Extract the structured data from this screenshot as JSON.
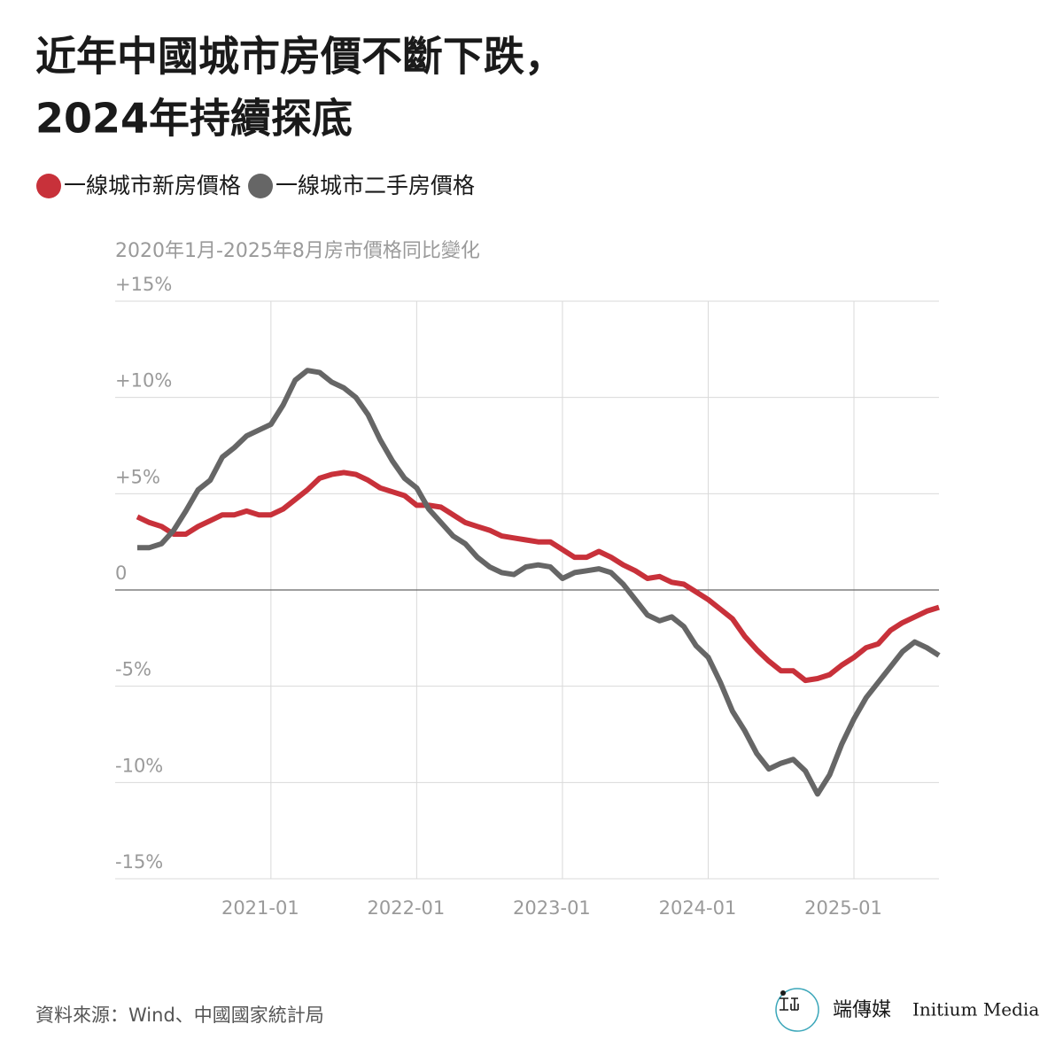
{
  "chart_data": {
    "type": "line",
    "title": [
      "近年中國城市房價不斷下跌，",
      "2024年持續探底"
    ],
    "subtitle": "2020年1月-2025年8月房市價格同比變化",
    "x": [
      "2020-02",
      "2020-03",
      "2020-04",
      "2020-05",
      "2020-06",
      "2020-07",
      "2020-08",
      "2020-09",
      "2020-10",
      "2020-11",
      "2020-12",
      "2021-01",
      "2021-02",
      "2021-03",
      "2021-04",
      "2021-05",
      "2021-06",
      "2021-07",
      "2021-08",
      "2021-09",
      "2021-10",
      "2021-11",
      "2021-12",
      "2022-01",
      "2022-02",
      "2022-03",
      "2022-04",
      "2022-05",
      "2022-06",
      "2022-07",
      "2022-08",
      "2022-09",
      "2022-10",
      "2022-11",
      "2022-12",
      "2023-01",
      "2023-02",
      "2023-03",
      "2023-04",
      "2023-05",
      "2023-06",
      "2023-07",
      "2023-08",
      "2023-09",
      "2023-10",
      "2023-11",
      "2023-12",
      "2024-01",
      "2024-02",
      "2024-03",
      "2024-04",
      "2024-05",
      "2024-06",
      "2024-07",
      "2024-08",
      "2024-09",
      "2024-10",
      "2024-11",
      "2024-12",
      "2025-01",
      "2025-02",
      "2025-03",
      "2025-04",
      "2025-05",
      "2025-06",
      "2025-07",
      "2025-08"
    ],
    "series": [
      {
        "name": "一線城市新房價格",
        "color": "#c8313a",
        "values": [
          3.8,
          3.5,
          3.3,
          2.9,
          2.9,
          3.3,
          3.6,
          3.9,
          3.9,
          4.1,
          3.9,
          3.9,
          4.2,
          4.7,
          5.2,
          5.8,
          6.0,
          6.1,
          6.0,
          5.7,
          5.3,
          5.1,
          4.9,
          4.4,
          4.4,
          4.3,
          3.9,
          3.5,
          3.3,
          3.1,
          2.8,
          2.7,
          2.6,
          2.5,
          2.5,
          2.1,
          1.7,
          1.7,
          2.0,
          1.7,
          1.3,
          1.0,
          0.6,
          0.7,
          0.4,
          0.3,
          -0.1,
          -0.5,
          -1.0,
          -1.5,
          -2.4,
          -3.1,
          -3.7,
          -4.2,
          -4.2,
          -4.7,
          -4.6,
          -4.4,
          -3.9,
          -3.5,
          -3.0,
          -2.8,
          -2.1,
          -1.7,
          -1.4,
          -1.1,
          -0.9
        ]
      },
      {
        "name": "一線城市二手房價格",
        "color": "#666666",
        "values": [
          2.2,
          2.2,
          2.4,
          3.1,
          4.1,
          5.2,
          5.7,
          6.9,
          7.4,
          8.0,
          8.3,
          8.6,
          9.6,
          10.9,
          11.4,
          11.3,
          10.8,
          10.5,
          10.0,
          9.1,
          7.8,
          6.7,
          5.8,
          5.3,
          4.2,
          3.5,
          2.8,
          2.4,
          1.7,
          1.2,
          0.9,
          0.8,
          1.2,
          1.3,
          1.2,
          0.6,
          0.9,
          1.0,
          1.1,
          0.9,
          0.3,
          -0.5,
          -1.3,
          -1.6,
          -1.4,
          -1.9,
          -2.9,
          -3.5,
          -4.8,
          -6.3,
          -7.3,
          -8.5,
          -9.3,
          -9.0,
          -8.8,
          -9.4,
          -10.6,
          -9.6,
          -8.0,
          -6.7,
          -5.6,
          -4.8,
          -4.0,
          -3.2,
          -2.7,
          -3.0,
          -3.4
        ]
      }
    ],
    "xticks": [
      "2021-01",
      "2022-01",
      "2023-01",
      "2024-01",
      "2025-01"
    ],
    "ylim": [
      -15,
      15
    ],
    "yticks": [
      {
        "value": 15,
        "label": "+15%"
      },
      {
        "value": 10,
        "label": "+10%"
      },
      {
        "value": 5,
        "label": "+5%"
      },
      0,
      {
        "value": -5,
        "label": "-5%"
      },
      {
        "value": -10,
        "label": "-10%"
      },
      {
        "value": -15,
        "label": "-15%"
      }
    ],
    "grid": true
  },
  "source": "資料來源：Wind、中國國家統計局",
  "brand": "端傳媒",
  "brand_en": "Initium Media"
}
